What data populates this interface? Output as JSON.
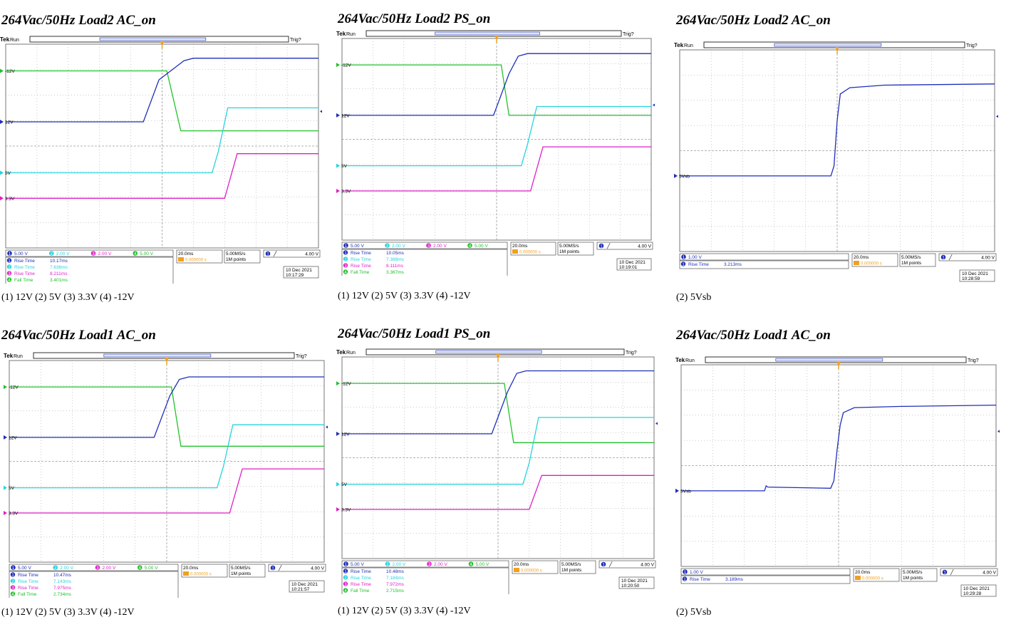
{
  "colors": {
    "ch1": "#1f2fb8",
    "ch2": "#27d3dc",
    "ch3": "#de1fc8",
    "ch4": "#22c22b",
    "trigger": "#f0a020",
    "grid": "#9a9a9a"
  },
  "chart_data": [
    {
      "type": "line",
      "title": "264Vac/50Hz Load2 AC_on",
      "caption": "(1) 12V (2) 5V (3) 3.3V (4) -12V",
      "x_unit": "ms",
      "x_div": "20.0ms",
      "xlim": [
        -100,
        100
      ],
      "ylim": [
        -4,
        4
      ],
      "y_unit": "div",
      "header": {
        "brand": "Tek",
        "state": "Run",
        "trig": "Trig?"
      },
      "scales": [
        {
          "ch": "1",
          "val": "5.00 V"
        },
        {
          "ch": "2",
          "val": "2.00 V"
        },
        {
          "ch": "3",
          "val": "2.00 V"
        },
        {
          "ch": "4",
          "val": "5.00 V"
        }
      ],
      "timebase": "20.0ms",
      "trig_pos": "0.000000 s",
      "sample_rate": "5.00MS/s",
      "points": "1M points",
      "trig_ch": "1",
      "trig_level": "4.00 V",
      "measurements": [
        {
          "ch": "1",
          "label": "Rise Time",
          "value": "10.17ms"
        },
        {
          "ch": "2",
          "label": "Rise Time",
          "value": "7.636ms"
        },
        {
          "ch": "3",
          "label": "Rise Time",
          "value": "8.211ms"
        },
        {
          "ch": "4",
          "label": "Fall Time",
          "value": "3.401ms"
        }
      ],
      "date": "10 Dec  2021",
      "time": "10:17:29",
      "series": [
        {
          "name": "-12V",
          "channel": "4",
          "x": [
            -100,
            3,
            12,
            100
          ],
          "y": [
            2.95,
            2.95,
            0.6,
            0.6
          ]
        },
        {
          "name": "12V",
          "channel": "1",
          "x": [
            -100,
            -12,
            -2,
            14,
            20,
            100
          ],
          "y": [
            0.95,
            0.95,
            2.6,
            3.35,
            3.45,
            3.45
          ]
        },
        {
          "name": "5V",
          "channel": "2",
          "x": [
            -100,
            32,
            36,
            42,
            100
          ],
          "y": [
            -1.05,
            -1.05,
            -0.2,
            1.5,
            1.5
          ]
        },
        {
          "name": "3.3V",
          "channel": "3",
          "x": [
            -100,
            40,
            48,
            100
          ],
          "y": [
            -2.05,
            -2.05,
            -0.3,
            -0.3
          ]
        }
      ]
    },
    {
      "type": "line",
      "title": "264Vac/50Hz Load2 PS_on",
      "caption": "(1) 12V (2) 5V (3) 3.3V (4) -12V",
      "x_unit": "ms",
      "x_div": "20.0ms",
      "xlim": [
        -100,
        100
      ],
      "ylim": [
        -4,
        4
      ],
      "y_unit": "div",
      "header": {
        "brand": "Tek",
        "state": "Run",
        "trig": "Trig?"
      },
      "scales": [
        {
          "ch": "1",
          "val": "5.00 V"
        },
        {
          "ch": "2",
          "val": "2.00 V"
        },
        {
          "ch": "3",
          "val": "2.00 V"
        },
        {
          "ch": "4",
          "val": "5.00 V"
        }
      ],
      "timebase": "20.0ms",
      "trig_pos": "0.000000 s",
      "sample_rate": "5.00MS/s",
      "points": "1M points",
      "trig_ch": "1",
      "trig_level": "4.00 V",
      "measurements": [
        {
          "ch": "1",
          "label": "Rise Time",
          "value": "10.05ms"
        },
        {
          "ch": "2",
          "label": "Rise Time",
          "value": "7.388ms"
        },
        {
          "ch": "3",
          "label": "Rise Time",
          "value": "8.111ms"
        },
        {
          "ch": "4",
          "label": "Fall Time",
          "value": "3.367ms"
        }
      ],
      "date": "10 Dec  2021",
      "time": "10:19:01",
      "series": [
        {
          "name": "-12V",
          "channel": "4",
          "x": [
            -100,
            3,
            8,
            100
          ],
          "y": [
            2.95,
            2.95,
            0.95,
            0.95
          ]
        },
        {
          "name": "12V",
          "channel": "1",
          "x": [
            -100,
            -2,
            8,
            14,
            20,
            100
          ],
          "y": [
            0.95,
            0.95,
            2.6,
            3.3,
            3.4,
            3.4
          ]
        },
        {
          "name": "5V",
          "channel": "2",
          "x": [
            -100,
            16,
            20,
            26,
            100
          ],
          "y": [
            -1.05,
            -1.05,
            -0.2,
            1.3,
            1.3
          ]
        },
        {
          "name": "3.3V",
          "channel": "3",
          "x": [
            -100,
            22,
            30,
            100
          ],
          "y": [
            -2.05,
            -2.05,
            -0.3,
            -0.3
          ]
        }
      ]
    },
    {
      "type": "line",
      "title": "264Vac/50Hz Load2 AC_on",
      "caption": "(2) 5Vsb",
      "x_unit": "ms",
      "x_div": "20.0ms",
      "xlim": [
        -100,
        100
      ],
      "ylim": [
        -4,
        4
      ],
      "y_unit": "div",
      "header": {
        "brand": "Tek",
        "state": "Run",
        "trig": "Trig?"
      },
      "scales": [
        {
          "ch": "1",
          "val": "1.00 V"
        }
      ],
      "timebase": "20.0ms",
      "trig_pos": "0.000000 s",
      "sample_rate": "5.00MS/s",
      "points": "1M points",
      "trig_ch": "1",
      "trig_level": "4.00 V",
      "measurements": [
        {
          "ch": "1",
          "label": "Rise Time",
          "value": "3.213ms"
        }
      ],
      "date": "10 Dec  2021",
      "time": "10:28:59",
      "series": [
        {
          "name": "5Vsb",
          "channel": "1",
          "x": [
            -100,
            -4,
            -2,
            0,
            2,
            8,
            30,
            100
          ],
          "y": [
            -1.0,
            -1.0,
            -0.6,
            1.2,
            2.25,
            2.5,
            2.6,
            2.65
          ]
        }
      ]
    },
    {
      "type": "line",
      "title": "264Vac/50Hz Load1 AC_on",
      "caption": "(1) 12V (2) 5V (3) 3.3V (4) -12V",
      "x_unit": "ms",
      "x_div": "20.0ms",
      "xlim": [
        -100,
        100
      ],
      "ylim": [
        -4,
        4
      ],
      "y_unit": "div",
      "header": {
        "brand": "Tek",
        "state": "Run",
        "trig": "Trig?"
      },
      "scales": [
        {
          "ch": "1",
          "val": "5.00 V"
        },
        {
          "ch": "2",
          "val": "2.00 V"
        },
        {
          "ch": "3",
          "val": "2.00 V"
        },
        {
          "ch": "4",
          "val": "5.00 V"
        }
      ],
      "timebase": "20.0ms",
      "trig_pos": "0.000000 s",
      "sample_rate": "5.00MS/s",
      "points": "1M points",
      "trig_ch": "1",
      "trig_level": "4.00 V",
      "measurements": [
        {
          "ch": "1",
          "label": "Rise Time",
          "value": "10.47ms"
        },
        {
          "ch": "2",
          "label": "Rise Time",
          "value": "7.143ms"
        },
        {
          "ch": "3",
          "label": "Rise Time",
          "value": "7.975ms"
        },
        {
          "ch": "4",
          "label": "Fall Time",
          "value": "2.734ms"
        }
      ],
      "date": "10 Dec  2021",
      "time": "10:21:57",
      "series": [
        {
          "name": "-12V",
          "channel": "4",
          "x": [
            -100,
            3,
            9,
            100
          ],
          "y": [
            2.95,
            2.95,
            0.6,
            0.6
          ]
        },
        {
          "name": "12V",
          "channel": "1",
          "x": [
            -100,
            -8,
            2,
            8,
            14,
            100
          ],
          "y": [
            0.95,
            0.95,
            2.6,
            3.25,
            3.35,
            3.35
          ]
        },
        {
          "name": "5V",
          "channel": "2",
          "x": [
            -100,
            32,
            36,
            42,
            100
          ],
          "y": [
            -1.05,
            -1.05,
            -0.2,
            1.45,
            1.45
          ]
        },
        {
          "name": "3.3V",
          "channel": "3",
          "x": [
            -100,
            40,
            48,
            100
          ],
          "y": [
            -2.05,
            -2.05,
            -0.3,
            -0.3
          ]
        }
      ]
    },
    {
      "type": "line",
      "title": "264Vac/50Hz Load1 PS_on",
      "caption": "(1) 12V (2) 5V (3) 3.3V (4) -12V",
      "x_unit": "ms",
      "x_div": "20.0ms",
      "xlim": [
        -100,
        100
      ],
      "ylim": [
        -4,
        4
      ],
      "y_unit": "div",
      "header": {
        "brand": "Tek",
        "state": "Run",
        "trig": "Trig?"
      },
      "scales": [
        {
          "ch": "1",
          "val": "5.00 V"
        },
        {
          "ch": "2",
          "val": "2.00 V"
        },
        {
          "ch": "3",
          "val": "2.00 V"
        },
        {
          "ch": "4",
          "val": "5.00 V"
        }
      ],
      "timebase": "20.0ms",
      "trig_pos": "0.000000 s",
      "sample_rate": "5.00MS/s",
      "points": "1M points",
      "trig_ch": "1",
      "trig_level": "4.00 V",
      "measurements": [
        {
          "ch": "1",
          "label": "Rise Time",
          "value": "10.48ms"
        },
        {
          "ch": "2",
          "label": "Rise Time",
          "value": "7.184ms"
        },
        {
          "ch": "3",
          "label": "Rise Time",
          "value": "7.972ms"
        },
        {
          "ch": "4",
          "label": "Fall Time",
          "value": "2.715ms"
        }
      ],
      "date": "10 Dec  2021",
      "time": "10:20:50",
      "series": [
        {
          "name": "-12V",
          "channel": "4",
          "x": [
            -100,
            4,
            10,
            100
          ],
          "y": [
            2.95,
            2.95,
            0.6,
            0.6
          ]
        },
        {
          "name": "12V",
          "channel": "1",
          "x": [
            -100,
            -4,
            6,
            12,
            18,
            100
          ],
          "y": [
            0.95,
            0.95,
            2.6,
            3.35,
            3.45,
            3.45
          ]
        },
        {
          "name": "5V",
          "channel": "2",
          "x": [
            -100,
            16,
            20,
            26,
            100
          ],
          "y": [
            -1.05,
            -1.05,
            -0.2,
            1.6,
            1.6
          ]
        },
        {
          "name": "3.3V",
          "channel": "3",
          "x": [
            -100,
            20,
            28,
            100
          ],
          "y": [
            -2.05,
            -2.05,
            -0.7,
            -0.7
          ]
        }
      ]
    },
    {
      "type": "line",
      "title": "264Vac/50Hz Load1 AC_on",
      "caption": "(2) 5Vsb",
      "x_unit": "ms",
      "x_div": "20.0ms",
      "xlim": [
        -100,
        100
      ],
      "ylim": [
        -4,
        4
      ],
      "y_unit": "div",
      "header": {
        "brand": "Tek",
        "state": "Run",
        "trig": "Trig?"
      },
      "scales": [
        {
          "ch": "1",
          "val": "1.00 V"
        }
      ],
      "timebase": "20.0ms",
      "trig_pos": "0.000000 s",
      "sample_rate": "5.00MS/s",
      "points": "1M points",
      "trig_ch": "1",
      "trig_level": "4.00 V",
      "measurements": [
        {
          "ch": "1",
          "label": "Rise Time",
          "value": "3.189ms"
        }
      ],
      "date": "10 Dec  2021",
      "time": "10:29:28",
      "series": [
        {
          "name": "5Vsb",
          "channel": "1",
          "x": [
            -100,
            -47,
            -46,
            -45,
            -5,
            -3,
            -1,
            1,
            3,
            10,
            40,
            100
          ],
          "y": [
            -1.0,
            -1.0,
            -0.8,
            -0.85,
            -0.9,
            -0.6,
            0.6,
            1.6,
            2.1,
            2.3,
            2.35,
            2.4
          ]
        }
      ]
    }
  ]
}
